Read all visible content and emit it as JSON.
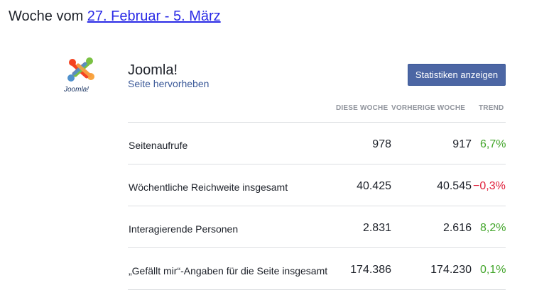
{
  "header": {
    "prefix": "Woche vom",
    "date_range": "27. Februar - 5. März"
  },
  "page": {
    "logo_icon": "joomla-logo-icon",
    "logo_text": "Joomla!",
    "name": "Joomla!",
    "highlight_link": "Seite hervorheben",
    "stats_button": "Statistiken anzeigen",
    "button_color": "#4c66a4"
  },
  "table": {
    "columns": [
      "DIESE WOCHE",
      "VORHERIGE WOCHE",
      "TREND"
    ],
    "rows": [
      {
        "label": "Seitenaufrufe",
        "this_week": "978",
        "previous_week": "917",
        "trend": "6,7%",
        "direction": "up"
      },
      {
        "label": "Wöchentliche Reichweite insgesamt",
        "this_week": "40.425",
        "previous_week": "40.545",
        "trend": "−0,3%",
        "direction": "down"
      },
      {
        "label": "Interagierende Personen",
        "this_week": "2.831",
        "previous_week": "2.616",
        "trend": "8,2%",
        "direction": "up"
      },
      {
        "label": "„Gefällt mir“-Angaben für die Seite insgesamt",
        "this_week": "174.386",
        "previous_week": "174.230",
        "trend": "0,1%",
        "direction": "up"
      }
    ]
  },
  "colors": {
    "trend_up": "#42a52a",
    "trend_down": "#e0203b",
    "link": "#2a2ae6"
  }
}
